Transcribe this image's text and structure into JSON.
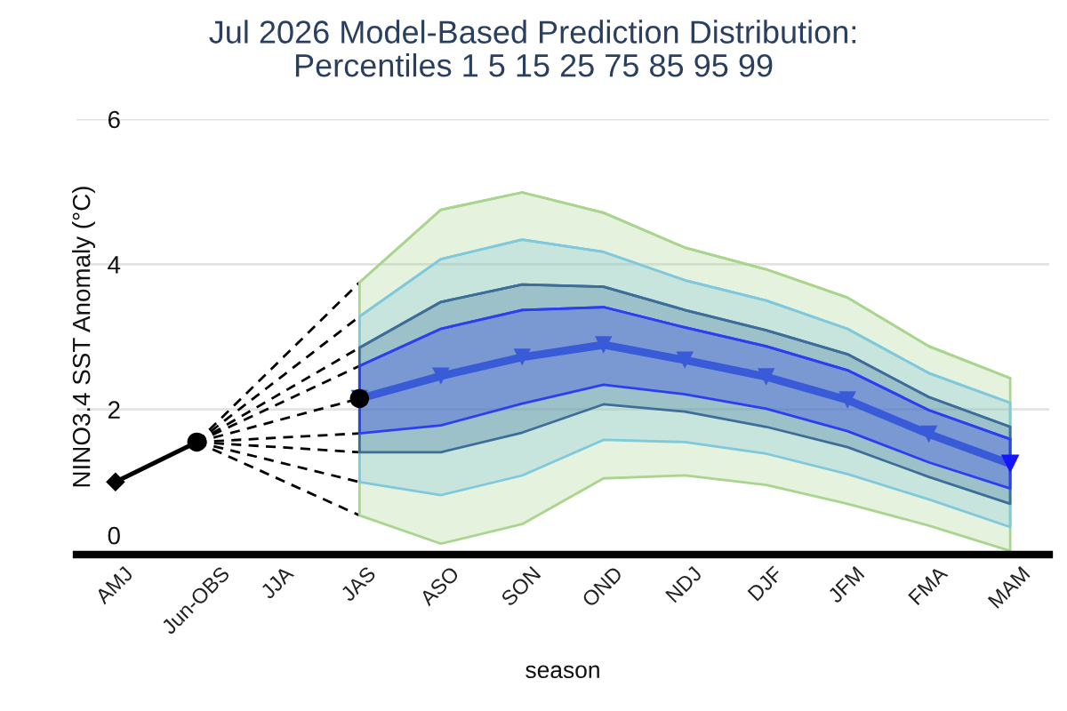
{
  "chart_data": {
    "type": "line",
    "title": "Jul 2026 Model-Based Prediction Distribution:\nPercentiles 1 5 15 25 75 85 95 99",
    "xlabel": "season",
    "ylabel": "NINO3.4 SST Anomaly (°C)",
    "categories": [
      "AMJ",
      "Jun-OBS",
      "JJA",
      "JAS",
      "ASO",
      "SON",
      "OND",
      "NDJ",
      "DJF",
      "JFM",
      "FMA",
      "MAM"
    ],
    "ylim": [
      0,
      6
    ],
    "yticks": [
      0,
      2,
      4,
      6
    ],
    "grid": "y",
    "series": [
      {
        "color": "#a9d58f",
        "values": [
          null,
          null,
          null,
          3.75,
          4.75,
          4.99,
          4.71,
          4.23,
          3.93,
          3.54,
          2.87,
          2.43
        ],
        "lower": [
          null,
          null,
          null,
          0.54,
          0.15,
          0.42,
          1.05,
          1.09,
          0.96,
          0.7,
          0.4,
          0.05
        ],
        "upper": [
          null,
          null,
          null,
          3.75,
          4.75,
          4.99,
          4.71,
          4.23,
          3.93,
          3.54,
          2.87,
          2.43
        ]
      },
      {
        "color": "#80c8dc",
        "values": [
          null,
          null,
          null,
          3.28,
          4.07,
          4.34,
          4.17,
          3.78,
          3.5,
          3.11,
          2.5,
          2.09
        ],
        "lower": [
          null,
          null,
          null,
          1.0,
          0.82,
          1.09,
          1.58,
          1.55,
          1.39,
          1.11,
          0.76,
          0.38
        ],
        "upper": [
          null,
          null,
          null,
          3.28,
          4.07,
          4.34,
          4.17,
          3.78,
          3.5,
          3.11,
          2.5,
          2.09
        ]
      },
      {
        "color": "#3d6e9a",
        "values": [
          null,
          null,
          null,
          2.85,
          3.48,
          3.72,
          3.69,
          3.37,
          3.09,
          2.76,
          2.17,
          1.76
        ],
        "lower": [
          null,
          null,
          null,
          1.41,
          1.41,
          1.68,
          2.07,
          1.97,
          1.76,
          1.48,
          1.07,
          0.7
        ],
        "upper": [
          null,
          null,
          null,
          2.85,
          3.48,
          3.72,
          3.69,
          3.37,
          3.09,
          2.76,
          2.17,
          1.76
        ]
      },
      {
        "color": "#2c3ff0",
        "values": [
          null,
          null,
          null,
          2.6,
          3.11,
          3.37,
          3.41,
          3.13,
          2.87,
          2.54,
          1.99,
          1.59
        ],
        "lower": [
          null,
          null,
          null,
          1.67,
          1.78,
          2.08,
          2.34,
          2.21,
          2.01,
          1.7,
          1.27,
          0.91
        ],
        "upper": [
          null,
          null,
          null,
          2.6,
          3.11,
          3.37,
          3.41,
          3.13,
          2.87,
          2.54,
          1.99,
          1.59
        ]
      },
      {
        "color": "#000000",
        "line_style": "dashed",
        "x": [
          "Jun-OBS",
          "JAS"
        ],
        "values": [
          1.55,
          3.75
        ]
      },
      {
        "color": "#000000",
        "line_style": "dashed",
        "x": [
          "Jun-OBS",
          "JAS"
        ],
        "values": [
          1.55,
          3.28
        ]
      },
      {
        "color": "#000000",
        "line_style": "dashed",
        "x": [
          "Jun-OBS",
          "JAS"
        ],
        "values": [
          1.55,
          2.85
        ]
      },
      {
        "color": "#000000",
        "line_style": "dashed",
        "x": [
          "Jun-OBS",
          "JAS"
        ],
        "values": [
          1.55,
          2.6
        ]
      },
      {
        "color": "#000000",
        "line_style": "dashed",
        "x": [
          "Jun-OBS",
          "JAS"
        ],
        "values": [
          1.55,
          2.15
        ]
      },
      {
        "color": "#000000",
        "line_style": "dashed",
        "x": [
          "Jun-OBS",
          "JAS"
        ],
        "values": [
          1.55,
          1.67
        ]
      },
      {
        "color": "#000000",
        "line_style": "dashed",
        "x": [
          "Jun-OBS",
          "JAS"
        ],
        "values": [
          1.55,
          1.41
        ]
      },
      {
        "color": "#000000",
        "line_style": "dashed",
        "x": [
          "Jun-OBS",
          "JAS"
        ],
        "values": [
          1.55,
          1.0
        ]
      },
      {
        "color": "#000000",
        "line_style": "dashed",
        "x": [
          "Jun-OBS",
          "JAS"
        ],
        "values": [
          1.55,
          0.54
        ]
      },
      {
        "color": "#000000",
        "line_style": "solid",
        "values": [
          1.0,
          1.55,
          null,
          null,
          null,
          null,
          null,
          null,
          null,
          null,
          null,
          null
        ]
      },
      {
        "type": "scatter",
        "color": "#000000",
        "marker": "diamond",
        "x": [
          "AMJ"
        ],
        "values": [
          1.0
        ]
      },
      {
        "type": "scatter",
        "color": "#000000",
        "marker": "circle",
        "x": [
          "Jun-OBS",
          "JAS"
        ],
        "values": [
          1.55,
          2.15
        ]
      },
      {
        "color": "#3a5bd8",
        "marker": "triangle",
        "line_style": "solid",
        "values": [
          null,
          null,
          null,
          2.15,
          2.46,
          2.72,
          2.89,
          2.68,
          2.45,
          2.13,
          1.66,
          1.25
        ]
      },
      {
        "type": "scatter",
        "color": "#1414ff",
        "marker": "triangle",
        "x": [
          "MAM"
        ],
        "values": [
          1.25
        ]
      }
    ]
  }
}
